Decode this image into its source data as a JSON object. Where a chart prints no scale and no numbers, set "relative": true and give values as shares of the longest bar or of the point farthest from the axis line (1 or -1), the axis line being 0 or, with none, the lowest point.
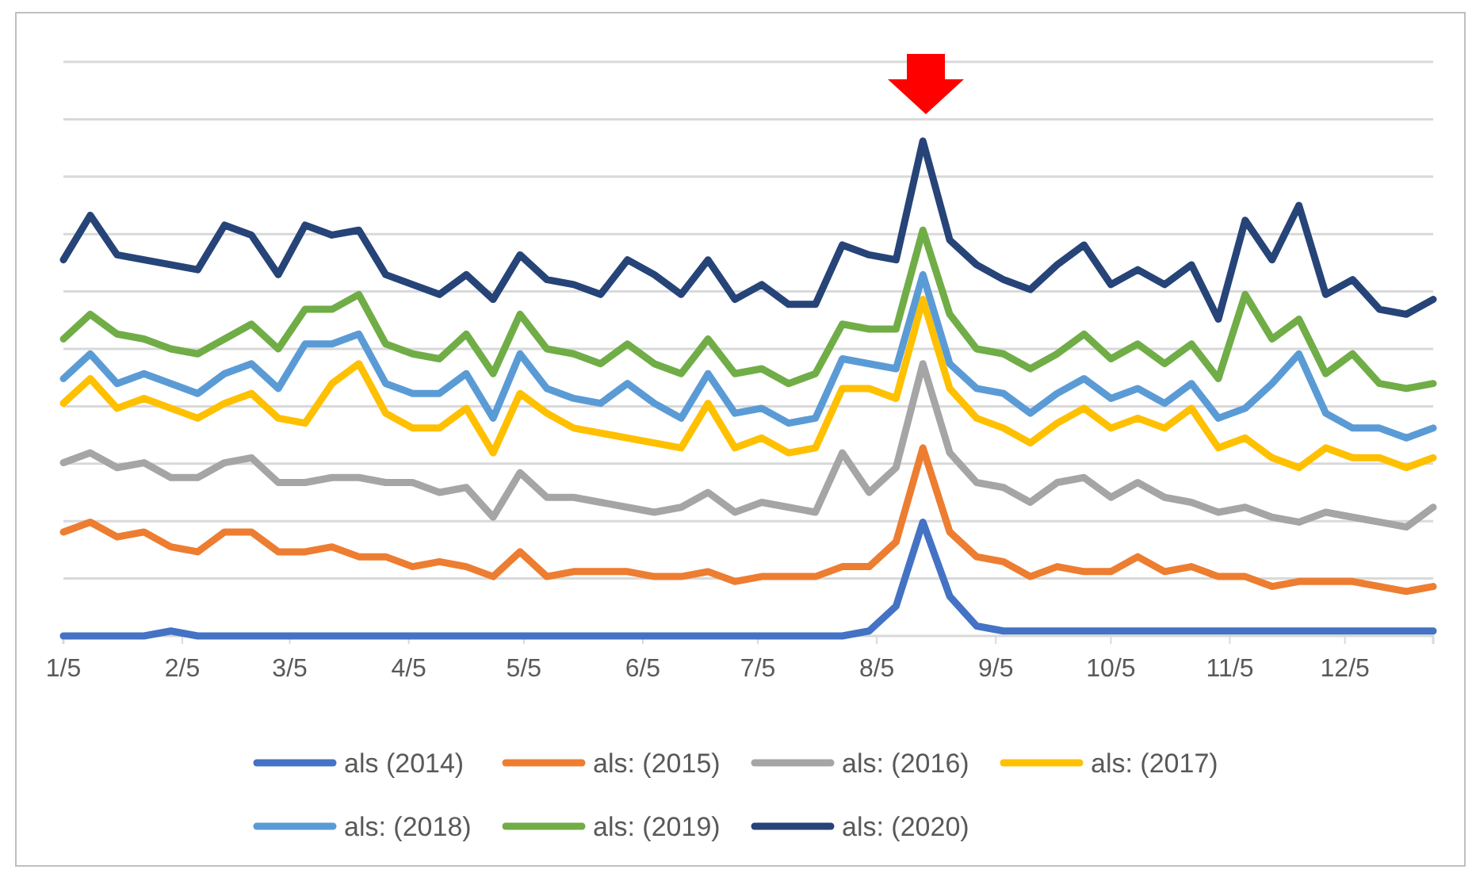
{
  "chart_data": {
    "type": "line",
    "relative": true,
    "grid": "y",
    "legend": "bottom",
    "marker": "none",
    "line_style": "solid",
    "x": [
      "--01-05",
      "--01-12",
      "--01-19",
      "--01-26",
      "--02-02",
      "--02-09",
      "--02-16",
      "--02-23",
      "--03-02",
      "--03-09",
      "--03-16",
      "--03-23",
      "--03-30",
      "--04-06",
      "--04-13",
      "--04-20",
      "--04-27",
      "--05-04",
      "--05-11",
      "--05-18",
      "--05-25",
      "--06-01",
      "--06-08",
      "--06-15",
      "--06-22",
      "--06-29",
      "--07-06",
      "--07-13",
      "--07-20",
      "--07-27",
      "--08-03",
      "--08-10",
      "--08-17",
      "--08-24",
      "--08-31",
      "--09-07",
      "--09-14",
      "--09-21",
      "--09-28",
      "--10-05",
      "--10-12",
      "--10-19",
      "--10-26",
      "--11-02",
      "--11-09",
      "--11-16",
      "--11-23",
      "--11-30",
      "--12-07",
      "--12-14",
      "--12-21",
      "--12-28"
    ],
    "xlim": [
      "--01-05",
      "--12-28"
    ],
    "xticks": [
      {
        "value": "--01-05",
        "label": "1/5"
      },
      {
        "value": "--02-05",
        "label": "2/5"
      },
      {
        "value": "--03-05",
        "label": "3/5"
      },
      {
        "value": "--04-05",
        "label": "4/5"
      },
      {
        "value": "--05-05",
        "label": "5/5"
      },
      {
        "value": "--06-05",
        "label": "6/5"
      },
      {
        "value": "--07-05",
        "label": "7/5"
      },
      {
        "value": "--08-05",
        "label": "8/5"
      },
      {
        "value": "--09-05",
        "label": "9/5"
      },
      {
        "value": "--10-05",
        "label": "10/5"
      },
      {
        "value": "--11-05",
        "label": "11/5"
      },
      {
        "value": "--12-05",
        "label": "12/5"
      }
    ],
    "series": [
      {
        "name": "als (2014)",
        "color": "#4472c4",
        "values": [
          0,
          0,
          0,
          0,
          0.01,
          0,
          0,
          0,
          0,
          0,
          0,
          0,
          0,
          0,
          0,
          0,
          0,
          0,
          0,
          0,
          0,
          0,
          0,
          0,
          0,
          0,
          0,
          0,
          0,
          0,
          0.01,
          0.06,
          0.23,
          0.08,
          0.02,
          0.01,
          0.01,
          0.01,
          0.01,
          0.01,
          0.01,
          0.01,
          0.01,
          0.01,
          0.01,
          0.01,
          0.01,
          0.01,
          0.01,
          0.01,
          0.01,
          0.01
        ]
      },
      {
        "name": "als: (2015)",
        "color": "#ed7d31",
        "values": [
          0.21,
          0.23,
          0.2,
          0.21,
          0.18,
          0.17,
          0.21,
          0.21,
          0.17,
          0.17,
          0.18,
          0.16,
          0.16,
          0.14,
          0.15,
          0.14,
          0.12,
          0.17,
          0.12,
          0.13,
          0.13,
          0.13,
          0.12,
          0.12,
          0.13,
          0.11,
          0.12,
          0.12,
          0.12,
          0.14,
          0.14,
          0.19,
          0.38,
          0.21,
          0.16,
          0.15,
          0.12,
          0.14,
          0.13,
          0.13,
          0.16,
          0.13,
          0.14,
          0.12,
          0.12,
          0.1,
          0.11,
          0.11,
          0.11,
          0.1,
          0.09,
          0.1
        ]
      },
      {
        "name": "als: (2016)",
        "color": "#a5a5a5",
        "values": [
          0.35,
          0.37,
          0.34,
          0.35,
          0.32,
          0.32,
          0.35,
          0.36,
          0.31,
          0.31,
          0.32,
          0.32,
          0.31,
          0.31,
          0.29,
          0.3,
          0.24,
          0.33,
          0.28,
          0.28,
          0.27,
          0.26,
          0.25,
          0.26,
          0.29,
          0.25,
          0.27,
          0.26,
          0.25,
          0.37,
          0.29,
          0.34,
          0.55,
          0.37,
          0.31,
          0.3,
          0.27,
          0.31,
          0.32,
          0.28,
          0.31,
          0.28,
          0.27,
          0.25,
          0.26,
          0.24,
          0.23,
          0.25,
          0.24,
          0.23,
          0.22,
          0.26
        ]
      },
      {
        "name": "als: (2017)",
        "color": "#ffc000",
        "values": [
          0.47,
          0.52,
          0.46,
          0.48,
          0.46,
          0.44,
          0.47,
          0.49,
          0.44,
          0.43,
          0.51,
          0.55,
          0.45,
          0.42,
          0.42,
          0.46,
          0.37,
          0.49,
          0.45,
          0.42,
          0.41,
          0.4,
          0.39,
          0.38,
          0.47,
          0.38,
          0.4,
          0.37,
          0.38,
          0.5,
          0.5,
          0.48,
          0.68,
          0.5,
          0.44,
          0.42,
          0.39,
          0.43,
          0.46,
          0.42,
          0.44,
          0.42,
          0.46,
          0.38,
          0.4,
          0.36,
          0.34,
          0.38,
          0.36,
          0.36,
          0.34,
          0.36
        ]
      },
      {
        "name": "als: (2018)",
        "color": "#5b9bd5",
        "values": [
          0.52,
          0.57,
          0.51,
          0.53,
          0.51,
          0.49,
          0.53,
          0.55,
          0.5,
          0.59,
          0.59,
          0.61,
          0.51,
          0.49,
          0.49,
          0.53,
          0.44,
          0.57,
          0.5,
          0.48,
          0.47,
          0.51,
          0.47,
          0.44,
          0.53,
          0.45,
          0.46,
          0.43,
          0.44,
          0.56,
          0.55,
          0.54,
          0.73,
          0.55,
          0.5,
          0.49,
          0.45,
          0.49,
          0.52,
          0.48,
          0.5,
          0.47,
          0.51,
          0.44,
          0.46,
          0.51,
          0.57,
          0.45,
          0.42,
          0.42,
          0.4,
          0.42
        ]
      },
      {
        "name": "als: (2019)",
        "color": "#70ad47",
        "values": [
          0.6,
          0.65,
          0.61,
          0.6,
          0.58,
          0.57,
          0.6,
          0.63,
          0.58,
          0.66,
          0.66,
          0.69,
          0.59,
          0.57,
          0.56,
          0.61,
          0.53,
          0.65,
          0.58,
          0.57,
          0.55,
          0.59,
          0.55,
          0.53,
          0.6,
          0.53,
          0.54,
          0.51,
          0.53,
          0.63,
          0.62,
          0.62,
          0.82,
          0.65,
          0.58,
          0.57,
          0.54,
          0.57,
          0.61,
          0.56,
          0.59,
          0.55,
          0.59,
          0.52,
          0.69,
          0.6,
          0.64,
          0.53,
          0.57,
          0.51,
          0.5,
          0.51
        ]
      },
      {
        "name": "als: (2020)",
        "color": "#264478",
        "values": [
          0.76,
          0.85,
          0.77,
          0.76,
          0.75,
          0.74,
          0.83,
          0.81,
          0.73,
          0.83,
          0.81,
          0.82,
          0.73,
          0.71,
          0.69,
          0.73,
          0.68,
          0.77,
          0.72,
          0.71,
          0.69,
          0.76,
          0.73,
          0.69,
          0.76,
          0.68,
          0.71,
          0.67,
          0.67,
          0.79,
          0.77,
          0.76,
          1,
          0.8,
          0.75,
          0.72,
          0.7,
          0.75,
          0.79,
          0.71,
          0.74,
          0.71,
          0.75,
          0.64,
          0.84,
          0.76,
          0.87,
          0.69,
          0.72,
          0.66,
          0.65,
          0.68
        ]
      }
    ]
  }
}
